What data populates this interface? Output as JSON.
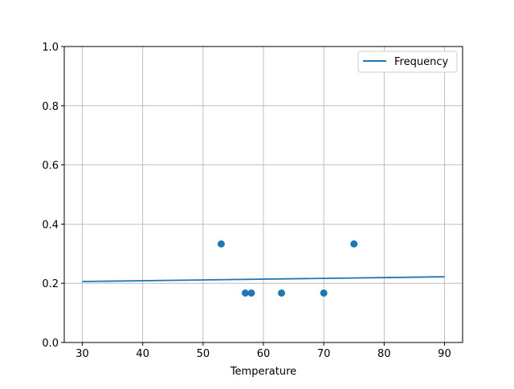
{
  "chart_data": {
    "type": "scatter+line",
    "title": "",
    "xlabel": "Temperature",
    "ylabel": "",
    "xlim": [
      27,
      93
    ],
    "ylim": [
      0,
      1
    ],
    "xticks": [
      30,
      40,
      50,
      60,
      70,
      80,
      90
    ],
    "yticks": [
      "0.0",
      "0.2",
      "0.4",
      "0.6",
      "0.8",
      "1.0"
    ],
    "grid": true,
    "legend": {
      "placement": "top-right",
      "entries": [
        "Frequency"
      ]
    },
    "color": "#1f77b4",
    "scatter": {
      "x": [
        53,
        57,
        58,
        63,
        70,
        75
      ],
      "y": [
        0.333,
        0.167,
        0.167,
        0.167,
        0.167,
        0.333
      ]
    },
    "line": {
      "name": "Frequency",
      "x": [
        30,
        90
      ],
      "y": [
        0.206,
        0.222
      ]
    }
  }
}
